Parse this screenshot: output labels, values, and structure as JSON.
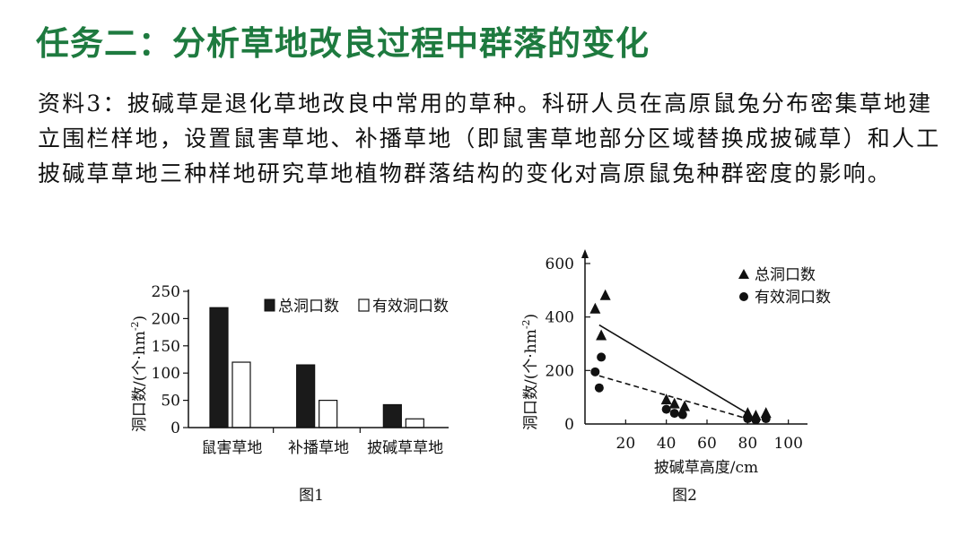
{
  "header": {
    "title": "任务二：分析草地改良过程中群落的变化"
  },
  "material": {
    "text": "资料3：披碱草是退化草地改良中常用的草种。科研人员在高原鼠兔分布密集草地建立围栏样地，设置鼠害草地、补播草地（即鼠害草地部分区域替换成披碱草）和人工披碱草草地三种样地研究草地植物群落结构的变化对高原鼠兔种群密度的影响。"
  },
  "chart_data": [
    {
      "type": "bar",
      "caption": "图1",
      "ylabel": "洞口数/(个·hm⁻²)",
      "ylabel_main": "洞口数/(个·hm",
      "ylabel_sup": "-2",
      "ylabel_end": ")",
      "ylim": [
        0,
        250
      ],
      "yticks": [
        0,
        50,
        100,
        150,
        200,
        250
      ],
      "categories": [
        "鼠害草地",
        "补播草地",
        "披碱草草地"
      ],
      "legend_position": "top-right",
      "series": [
        {
          "name": "总洞口数",
          "color": "#1a1a1a",
          "values": [
            220,
            115,
            42
          ]
        },
        {
          "name": "有效洞口数",
          "color": "#ffffff",
          "values": [
            120,
            50,
            16
          ]
        }
      ]
    },
    {
      "type": "scatter",
      "caption": "图2",
      "xlabel": "披碱草高度/cm",
      "ylabel": "洞口数/(个·hm⁻²)",
      "ylabel_main": "洞口数/(个·hm",
      "ylabel_sup": "-2",
      "ylabel_end": ")",
      "xticks": [
        20,
        40,
        60,
        80,
        100
      ],
      "yticks": [
        0,
        200,
        400,
        600
      ],
      "xlim": [
        0,
        105
      ],
      "ylim": [
        0,
        620
      ],
      "legend_position": "top-right",
      "series": [
        {
          "name": "总洞口数",
          "marker": "triangle",
          "x": [
            5,
            8,
            10,
            40,
            44,
            49,
            80,
            84,
            89
          ],
          "y": [
            430,
            330,
            480,
            90,
            75,
            65,
            40,
            30,
            40
          ],
          "trend": {
            "style": "solid",
            "x": [
              7,
              82
            ],
            "y": [
              370,
              30
            ]
          }
        },
        {
          "name": "有效洞口数",
          "marker": "circle",
          "x": [
            5,
            7,
            8,
            40,
            44,
            48,
            80,
            84,
            89
          ],
          "y": [
            195,
            135,
            250,
            55,
            40,
            35,
            20,
            15,
            20
          ],
          "trend": {
            "style": "dashed",
            "x": [
              7,
              82
            ],
            "y": [
              180,
              15
            ]
          }
        }
      ]
    }
  ]
}
